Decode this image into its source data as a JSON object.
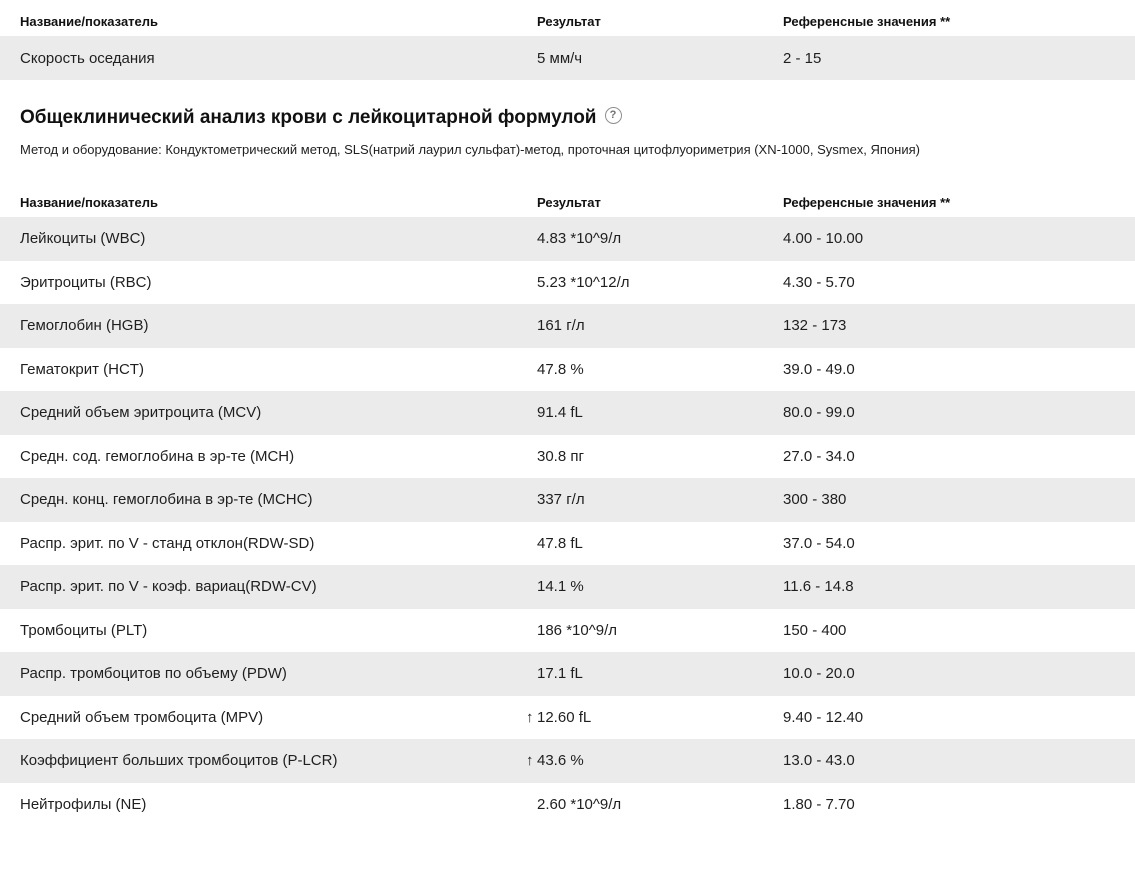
{
  "colors": {
    "row_alt_bg": "#ebebeb",
    "text": "#1f1f1f",
    "help_icon_gray": "#8f8f8f"
  },
  "flags": {
    "up_glyph": "↑"
  },
  "columns": {
    "name": "Название/показатель",
    "result": "Результат",
    "reference": "Референсные значения **"
  },
  "esr_table": {
    "rows": [
      {
        "name": "Скорость оседания",
        "result": "5 мм/ч",
        "reference": "2 - 15",
        "flag": ""
      }
    ]
  },
  "section": {
    "title": "Общеклинический анализ крови с лейкоцитарной формулой",
    "help_glyph": "?",
    "method": "Метод и оборудование: Кондуктометрический метод, SLS(натрий лаурил сульфат)-метод, проточная цитофлуориметрия (XN-1000, Sysmex, Япония)"
  },
  "cbc_table": {
    "rows": [
      {
        "name": "Лейкоциты (WBC)",
        "result": "4.83 *10^9/л",
        "reference": "4.00 - 10.00",
        "flag": ""
      },
      {
        "name": "Эритроциты (RBC)",
        "result": "5.23 *10^12/л",
        "reference": "4.30 - 5.70",
        "flag": ""
      },
      {
        "name": "Гемоглобин (HGB)",
        "result": "161 г/л",
        "reference": "132 - 173",
        "flag": ""
      },
      {
        "name": "Гематокрит (HCT)",
        "result": "47.8 %",
        "reference": "39.0 - 49.0",
        "flag": ""
      },
      {
        "name": "Средний объем эритроцита (MCV)",
        "result": "91.4 fL",
        "reference": "80.0 - 99.0",
        "flag": ""
      },
      {
        "name": "Средн. сод. гемоглобина в эр-те (MCH)",
        "result": "30.8 пг",
        "reference": "27.0 - 34.0",
        "flag": ""
      },
      {
        "name": "Средн. конц. гемоглобина в эр-те (MCHC)",
        "result": "337 г/л",
        "reference": "300 - 380",
        "flag": ""
      },
      {
        "name": "Распр. эрит. по V - станд отклон(RDW-SD)",
        "result": "47.8 fL",
        "reference": "37.0 - 54.0",
        "flag": ""
      },
      {
        "name": "Распр. эрит. по V - коэф. вариац(RDW-CV)",
        "result": "14.1 %",
        "reference": "11.6 - 14.8",
        "flag": ""
      },
      {
        "name": "Тромбоциты (PLT)",
        "result": "186 *10^9/л",
        "reference": "150 - 400",
        "flag": ""
      },
      {
        "name": "Распр. тромбоцитов по объему (PDW)",
        "result": "17.1 fL",
        "reference": "10.0 - 20.0",
        "flag": ""
      },
      {
        "name": "Средний объем тромбоцита (MPV)",
        "result": "12.60 fL",
        "reference": "9.40 - 12.40",
        "flag": "up"
      },
      {
        "name": "Коэффициент больших тромбоцитов (P-LCR)",
        "result": "43.6 %",
        "reference": "13.0 - 43.0",
        "flag": "up"
      },
      {
        "name": "Нейтрофилы (NE)",
        "result": "2.60 *10^9/л",
        "reference": "1.80 - 7.70",
        "flag": ""
      }
    ]
  }
}
